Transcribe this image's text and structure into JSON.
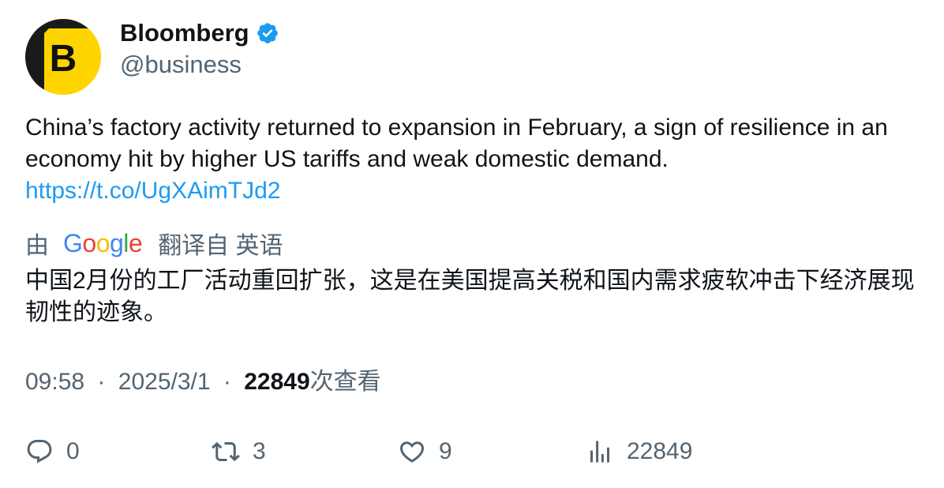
{
  "author": {
    "name": "Bloomberg",
    "handle": "@business",
    "avatar_letter": "B",
    "verified": true
  },
  "tweet": {
    "text": "China’s factory activity returned to expansion in February, a sign of resilience in an economy hit by higher US tariffs and weak domestic demand.",
    "link": "https://t.co/UgXAimTJd2"
  },
  "translation": {
    "prefix": "由",
    "provider_logo": "Google",
    "suffix": "翻译自 英语",
    "text": "中国2月份的工厂活动重回扩张，这是在美国提高关税和国内需求疲软冲击下经济展现韧性的迹象。"
  },
  "meta": {
    "time": "09:58",
    "separator": "·",
    "date": "2025/3/1",
    "views_count": "22849",
    "views_label": "次查看"
  },
  "actions": {
    "reply_count": "0",
    "retweet_count": "3",
    "like_count": "9",
    "views_count": "22849"
  },
  "icons": {
    "reply": "speech-bubble-icon",
    "retweet": "retweet-icon",
    "like": "heart-icon",
    "views": "bar-chart-icon",
    "verified": "verified-badge-icon"
  },
  "colors": {
    "link": "#1d9bf0",
    "secondary_text": "#536471",
    "primary_text": "#0f1419",
    "verified": "#1d9bf0",
    "avatar_bg": "#ffd500"
  }
}
